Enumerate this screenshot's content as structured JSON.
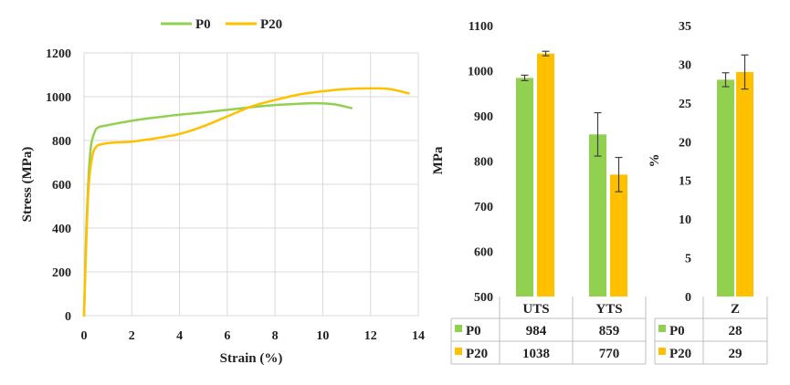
{
  "colors": {
    "P0": "#92d050",
    "P20": "#ffc000",
    "grid": "#d9d9d9",
    "axis": "#bfbfbf",
    "error": "#404040"
  },
  "chart_data": [
    {
      "type": "line",
      "title": "",
      "xlabel": "Strain (%)",
      "ylabel": "Stress (MPa)",
      "xlim": [
        0,
        14
      ],
      "ylim": [
        0,
        1200
      ],
      "xticks": [
        0,
        2,
        4,
        6,
        8,
        10,
        12,
        14
      ],
      "yticks": [
        0,
        200,
        400,
        600,
        800,
        1000,
        1200
      ],
      "grid": true,
      "legend_position": "top",
      "series": [
        {
          "name": "P0",
          "color": "#92d050",
          "points": [
            [
              0,
              0
            ],
            [
              0.1,
              400
            ],
            [
              0.2,
              650
            ],
            [
              0.3,
              780
            ],
            [
              0.45,
              840
            ],
            [
              0.6,
              860
            ],
            [
              1,
              870
            ],
            [
              2,
              890
            ],
            [
              3,
              905
            ],
            [
              4,
              918
            ],
            [
              5,
              928
            ],
            [
              6,
              940
            ],
            [
              7,
              952
            ],
            [
              8,
              962
            ],
            [
              9,
              968
            ],
            [
              9.8,
              970
            ],
            [
              10.5,
              965
            ],
            [
              11.2,
              948
            ]
          ]
        },
        {
          "name": "P20",
          "color": "#ffc000",
          "points": [
            [
              0,
              0
            ],
            [
              0.1,
              350
            ],
            [
              0.2,
              600
            ],
            [
              0.35,
              730
            ],
            [
              0.5,
              770
            ],
            [
              0.7,
              782
            ],
            [
              1.2,
              790
            ],
            [
              2,
              795
            ],
            [
              3,
              810
            ],
            [
              4,
              830
            ],
            [
              5,
              865
            ],
            [
              6,
              910
            ],
            [
              7,
              955
            ],
            [
              8,
              985
            ],
            [
              9,
              1010
            ],
            [
              10,
              1025
            ],
            [
              11,
              1035
            ],
            [
              12,
              1038
            ],
            [
              12.8,
              1035
            ],
            [
              13.6,
              1015
            ]
          ]
        }
      ]
    },
    {
      "type": "bar",
      "title": "",
      "ylabel": "MPa",
      "ylim": [
        500,
        1100
      ],
      "yticks": [
        500,
        600,
        700,
        800,
        900,
        1000,
        1100
      ],
      "grid": false,
      "categories": [
        "UTS",
        "YTS"
      ],
      "series": [
        {
          "name": "P0",
          "color": "#92d050",
          "values": [
            984,
            859
          ],
          "errors": [
            6,
            48
          ]
        },
        {
          "name": "P20",
          "color": "#ffc000",
          "values": [
            1038,
            770
          ],
          "errors": [
            5,
            38
          ]
        }
      ],
      "table": {
        "headers": [
          "UTS",
          "YTS"
        ],
        "rows": [
          {
            "label": "P0",
            "values": [
              "984",
              "859"
            ]
          },
          {
            "label": "P20",
            "values": [
              "1038",
              "770"
            ]
          }
        ]
      }
    },
    {
      "type": "bar",
      "title": "",
      "ylabel": "%",
      "ylim": [
        0,
        35
      ],
      "yticks": [
        0,
        5,
        10,
        15,
        20,
        25,
        30,
        35
      ],
      "grid": false,
      "categories": [
        "Z"
      ],
      "series": [
        {
          "name": "P0",
          "color": "#92d050",
          "values": [
            28
          ],
          "errors": [
            0.9
          ]
        },
        {
          "name": "P20",
          "color": "#ffc000",
          "values": [
            29
          ],
          "errors": [
            2.2
          ]
        }
      ],
      "table": {
        "headers": [
          "Z"
        ],
        "rows": [
          {
            "label": "P0",
            "values": [
              "28"
            ]
          },
          {
            "label": "P20",
            "values": [
              "29"
            ]
          }
        ]
      }
    }
  ]
}
